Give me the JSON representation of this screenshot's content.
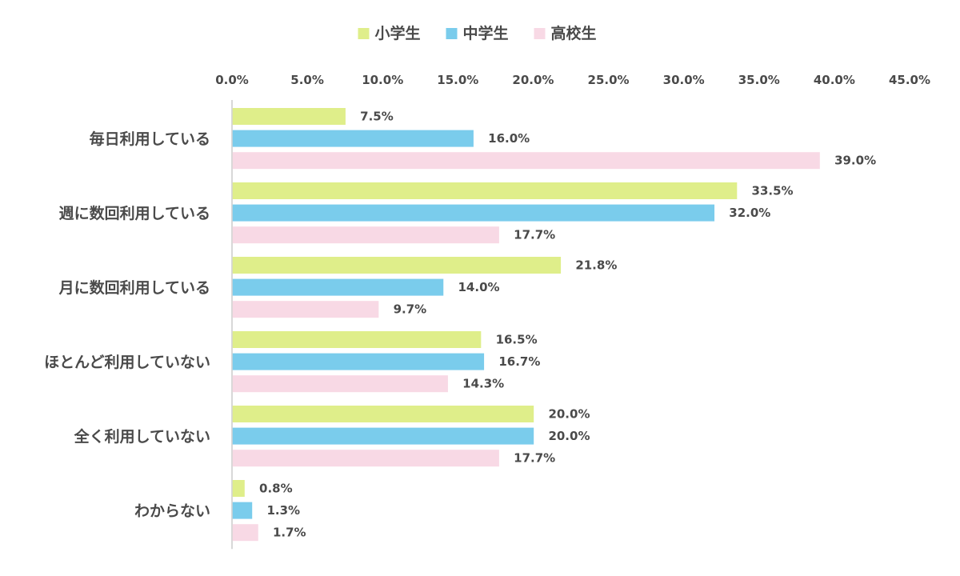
{
  "chart_data": {
    "type": "bar",
    "orientation": "horizontal",
    "categories": [
      "毎日利用している",
      "週に数回利用している",
      "月に数回利用している",
      "ほとんど利用していない",
      "全く利用していない",
      "わからない"
    ],
    "series": [
      {
        "name": "小学生",
        "color": "#dfee8a",
        "values": [
          7.5,
          33.5,
          21.8,
          16.5,
          20.0,
          0.8
        ]
      },
      {
        "name": "中学生",
        "color": "#7accec",
        "values": [
          16.0,
          32.0,
          14.0,
          16.7,
          20.0,
          1.3
        ]
      },
      {
        "name": "高校生",
        "color": "#f8d9e5",
        "values": [
          39.0,
          17.7,
          9.7,
          14.3,
          17.7,
          1.7
        ]
      }
    ],
    "value_labels": [
      [
        "7.5%",
        "33.5%",
        "21.8%",
        "16.5%",
        "20.0%",
        "0.8%"
      ],
      [
        "16.0%",
        "32.0%",
        "14.0%",
        "16.7%",
        "20.0%",
        "1.3%"
      ],
      [
        "39.0%",
        "17.7%",
        "9.7%",
        "14.3%",
        "17.7%",
        "1.7%"
      ]
    ],
    "x_ticks": [
      "0.0%",
      "5.0%",
      "10.0%",
      "15.0%",
      "20.0%",
      "25.0%",
      "30.0%",
      "35.0%",
      "40.0%",
      "45.0%"
    ],
    "xlim": [
      0,
      45
    ],
    "x_axis_position": "top",
    "legend_position": "top-center",
    "grid": false,
    "title": "",
    "xlabel": "",
    "ylabel": "",
    "axis_color": "#cccccc",
    "text_color": "#4a4a4a"
  }
}
